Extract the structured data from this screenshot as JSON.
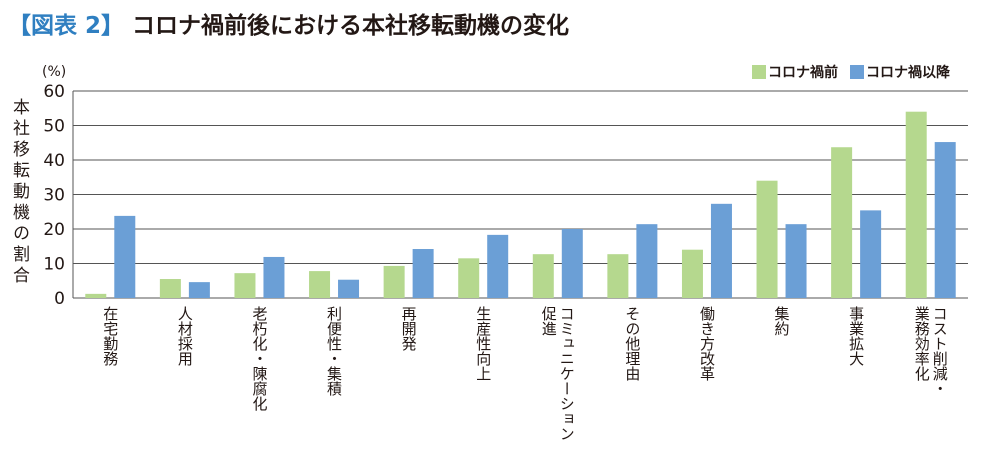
{
  "title": {
    "tag": "【図表 2】",
    "text": "コロナ禍前後における本社移転動機の変化"
  },
  "colors": {
    "before": "#b5d88e",
    "after": "#6b9fd6",
    "grid": "#555555",
    "title_tag": "#2f7fc1"
  },
  "chart_data": {
    "type": "bar",
    "title": "コロナ禍前後における本社移転動機の変化",
    "xlabel": "",
    "ylabel": "本社移転動機の割合",
    "unit": "(%)",
    "ylim": [
      0,
      60
    ],
    "yticks": [
      0,
      10,
      20,
      30,
      40,
      50,
      60
    ],
    "grid": true,
    "legend": "top-right",
    "categories": [
      [
        "在宅勤務"
      ],
      [
        "人材採用"
      ],
      [
        "老朽化・陳腐化"
      ],
      [
        "利便性・集積"
      ],
      [
        "再開発"
      ],
      [
        "生産性向上"
      ],
      [
        "コミュニケーション",
        "促進"
      ],
      [
        "その他理由"
      ],
      [
        "働き方改革"
      ],
      [
        "集約"
      ],
      [
        "事業拡大"
      ],
      [
        "コスト削減・",
        "業務効率化"
      ]
    ],
    "series": [
      {
        "name": "コロナ禍前",
        "values": [
          1.2,
          5.5,
          7.2,
          7.8,
          9.3,
          11.5,
          12.7,
          12.7,
          14.0,
          34.0,
          43.7,
          54.0
        ]
      },
      {
        "name": "コロナ禍以降",
        "values": [
          23.8,
          4.6,
          11.9,
          5.3,
          14.2,
          18.3,
          20.0,
          21.4,
          27.3,
          21.4,
          25.4,
          45.2
        ]
      }
    ]
  }
}
